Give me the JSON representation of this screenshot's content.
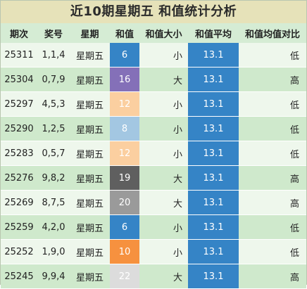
{
  "title": "近10期星期五 和值统计分析",
  "headers": [
    "期次",
    "奖号",
    "星期",
    "和值",
    "和值大小",
    "和值平均",
    "和值均值对比"
  ],
  "avg_color": "#3584c6",
  "rows": [
    {
      "issue": "25311",
      "numbers": "1,1,4",
      "weekday": "星期五",
      "sum": "6",
      "sum_color": "#3584c6",
      "size": "小",
      "avg": "13.1",
      "compare": "低"
    },
    {
      "issue": "25304",
      "numbers": "0,7,9",
      "weekday": "星期五",
      "sum": "16",
      "sum_color": "#8470b8",
      "size": "大",
      "avg": "13.1",
      "compare": "高"
    },
    {
      "issue": "25297",
      "numbers": "4,5,3",
      "weekday": "星期五",
      "sum": "12",
      "sum_color": "#fbcfa0",
      "size": "小",
      "avg": "13.1",
      "compare": "低"
    },
    {
      "issue": "25290",
      "numbers": "1,2,5",
      "weekday": "星期五",
      "sum": "8",
      "sum_color": "#a3c7e2",
      "size": "小",
      "avg": "13.1",
      "compare": "低"
    },
    {
      "issue": "25283",
      "numbers": "0,5,7",
      "weekday": "星期五",
      "sum": "12",
      "sum_color": "#fbcfa0",
      "size": "小",
      "avg": "13.1",
      "compare": "低"
    },
    {
      "issue": "25276",
      "numbers": "9,8,2",
      "weekday": "星期五",
      "sum": "19",
      "sum_color": "#5f5f5f",
      "size": "大",
      "avg": "13.1",
      "compare": "高"
    },
    {
      "issue": "25269",
      "numbers": "8,7,5",
      "weekday": "星期五",
      "sum": "20",
      "sum_color": "#9a9a9a",
      "size": "大",
      "avg": "13.1",
      "compare": "高"
    },
    {
      "issue": "25259",
      "numbers": "4,2,0",
      "weekday": "星期五",
      "sum": "6",
      "sum_color": "#3584c6",
      "size": "小",
      "avg": "13.1",
      "compare": "低"
    },
    {
      "issue": "25252",
      "numbers": "1,9,0",
      "weekday": "星期五",
      "sum": "10",
      "sum_color": "#f6913f",
      "size": "小",
      "avg": "13.1",
      "compare": "低"
    },
    {
      "issue": "25245",
      "numbers": "9,9,4",
      "weekday": "星期五",
      "sum": "22",
      "sum_color": "#dcdcdc",
      "size": "大",
      "avg": "13.1",
      "compare": "高"
    }
  ]
}
